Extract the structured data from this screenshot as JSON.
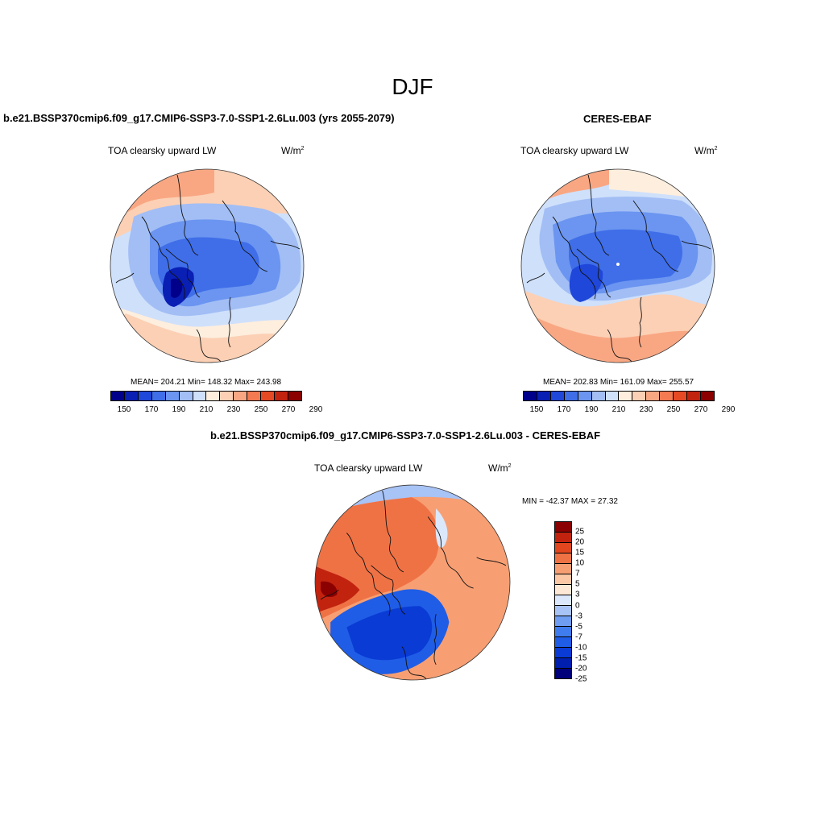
{
  "title": "DJF",
  "colors": {
    "abs_scale": [
      "#00008b",
      "#0a1fb4",
      "#1f47d9",
      "#3f6ee8",
      "#6b95f0",
      "#a2bef5",
      "#cfe0fb",
      "#fdeede",
      "#fcd0b4",
      "#f9a783",
      "#f47a52",
      "#e54a25",
      "#c2230f",
      "#8b0000"
    ],
    "diff_scale": [
      "#00007a",
      "#001fae",
      "#0a3bd4",
      "#1f5de6",
      "#3f7ced",
      "#6e9df2",
      "#a8c3f6",
      "#dbe7fb",
      "#fde8d6",
      "#fbc7a4",
      "#f79f73",
      "#ef7245",
      "#e2461f",
      "#c2230f",
      "#8b0000"
    ],
    "coast": "#111111"
  },
  "panels": {
    "model": {
      "title": "b.e21.BSSP370cmip6.f09_g17.CMIP6-SSP3-7.0-SSP1-2.6Lu.003 (yrs 2055-2079)",
      "variable": "TOA clearsky upward LW",
      "units": "W/m",
      "units_exp": "2",
      "stats": "MEAN= 204.21  Min= 148.32  Max= 243.98",
      "colorbar_ticks": [
        "150",
        "170",
        "190",
        "210",
        "230",
        "250",
        "270",
        "290"
      ]
    },
    "obs": {
      "title": "CERES-EBAF",
      "variable": "TOA clearsky upward LW",
      "units": "W/m",
      "units_exp": "2",
      "stats": "MEAN= 202.83  Min= 161.09  Max= 255.57",
      "colorbar_ticks": [
        "150",
        "170",
        "190",
        "210",
        "230",
        "250",
        "270",
        "290"
      ]
    },
    "diff": {
      "title": "b.e21.BSSP370cmip6.f09_g17.CMIP6-SSP3-7.0-SSP1-2.6Lu.003 - CERES-EBAF",
      "variable": "TOA clearsky upward LW",
      "units": "W/m",
      "units_exp": "2",
      "stats": "MIN = -42.37 MAX =  27.32",
      "colorbar_ticks": [
        "25",
        "20",
        "15",
        "10",
        "7",
        "5",
        "3",
        "0",
        "-3",
        "-5",
        "-7",
        "-10",
        "-15",
        "-20",
        "-25"
      ]
    }
  }
}
